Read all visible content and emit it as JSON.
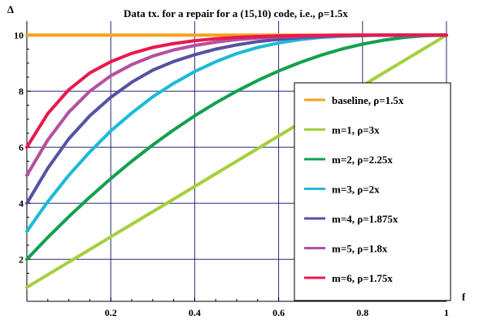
{
  "chart_data": {
    "type": "line",
    "title": "Data tx. for a repair for a (15,10) code, i.e., ρ=1.5x",
    "xlabel": "f",
    "ylabel": "Δ",
    "xlim": [
      0,
      1
    ],
    "ylim": [
      0.5,
      10.5
    ],
    "x_ticks": [
      0.2,
      0.4,
      0.6,
      0.8,
      1
    ],
    "x_tick_labels": [
      "0.2",
      "0.4",
      "0.6",
      "0.8",
      "1"
    ],
    "y_ticks": [
      2,
      4,
      6,
      8,
      10
    ],
    "y_tick_labels": [
      "2",
      "4",
      "6",
      "8",
      "10"
    ],
    "grid": true,
    "legend_position": "right",
    "x": [
      0,
      0.05,
      0.1,
      0.15,
      0.2,
      0.25,
      0.3,
      0.35,
      0.4,
      0.45,
      0.5,
      0.55,
      0.6,
      0.65,
      0.7,
      0.75,
      0.8,
      0.85,
      0.9,
      0.95,
      1
    ],
    "series": [
      {
        "name": "baseline, ρ=1.5x",
        "color": "#f4a11f",
        "values": [
          10,
          10,
          10,
          10,
          10,
          10,
          10,
          10,
          10,
          10,
          10,
          10,
          10,
          10,
          10,
          10,
          10,
          10,
          10,
          10,
          10
        ]
      },
      {
        "name": "m=1, ρ=3x",
        "color": "#a6cf3d",
        "values": [
          1,
          1.45,
          1.9,
          2.35,
          2.8,
          3.25,
          3.7,
          4.15,
          4.6,
          5.05,
          5.5,
          5.95,
          6.4,
          6.85,
          7.3,
          7.75,
          8.2,
          8.65,
          9.1,
          9.55,
          10
        ]
      },
      {
        "name": "m=2, ρ=2.25x",
        "color": "#12a04f",
        "values": [
          2,
          2.78,
          3.52,
          4.22,
          4.88,
          5.5,
          6.08,
          6.62,
          7.12,
          7.58,
          8,
          8.38,
          8.72,
          9.02,
          9.28,
          9.5,
          9.68,
          9.82,
          9.92,
          9.98,
          10
        ]
      },
      {
        "name": "m=3, ρ=2x",
        "color": "#1dbad6",
        "values": [
          3,
          4.06,
          5,
          5.83,
          6.58,
          7.22,
          7.8,
          8.28,
          8.7,
          9.05,
          9.34,
          9.56,
          9.72,
          9.84,
          9.92,
          9.96,
          9.98,
          10,
          10,
          10,
          10
        ]
      },
      {
        "name": "m=4, ρ=1.875x",
        "color": "#5552a3",
        "values": [
          4,
          5.25,
          6.3,
          7.12,
          7.78,
          8.32,
          8.75,
          9.06,
          9.3,
          9.5,
          9.65,
          9.77,
          9.85,
          9.91,
          9.95,
          9.98,
          9.99,
          10,
          10,
          10,
          10
        ]
      },
      {
        "name": "m=5, ρ=1.8x",
        "color": "#b54fa0",
        "values": [
          5,
          6.26,
          7.25,
          8,
          8.55,
          8.95,
          9.25,
          9.47,
          9.63,
          9.75,
          9.84,
          9.9,
          9.94,
          9.96,
          9.98,
          9.99,
          10,
          10,
          10,
          10,
          10
        ]
      },
      {
        "name": "m=6, ρ=1.75x",
        "color": "#e8194f",
        "values": [
          6,
          7.2,
          8.05,
          8.65,
          9.05,
          9.35,
          9.56,
          9.7,
          9.8,
          9.87,
          9.92,
          9.95,
          9.97,
          9.98,
          9.99,
          10,
          10,
          10,
          10,
          10,
          10
        ]
      }
    ]
  }
}
